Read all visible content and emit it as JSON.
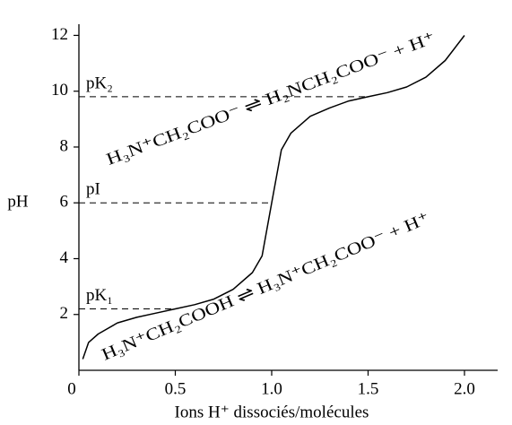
{
  "chart_data": {
    "type": "line",
    "x_label": "Ions H⁺ dissociés/molécules",
    "y_label": "pH",
    "x": [
      0.02,
      0.05,
      0.1,
      0.2,
      0.3,
      0.4,
      0.5,
      0.6,
      0.7,
      0.8,
      0.9,
      0.95,
      1.0,
      1.05,
      1.1,
      1.2,
      1.3,
      1.4,
      1.5,
      1.6,
      1.7,
      1.8,
      1.9,
      2.0
    ],
    "values": [
      0.4,
      1.0,
      1.3,
      1.7,
      1.9,
      2.05,
      2.2,
      2.35,
      2.55,
      2.9,
      3.5,
      4.1,
      6.0,
      7.9,
      8.5,
      9.1,
      9.4,
      9.65,
      9.8,
      9.95,
      10.15,
      10.5,
      11.1,
      12.0
    ],
    "color": "#000000",
    "xlim": [
      0,
      2.2
    ],
    "ylim": [
      0,
      12.4
    ],
    "xticks": [
      0,
      0.5,
      {
        "value": 1,
        "label": "1.0"
      },
      1.5,
      {
        "value": 2,
        "label": "2.0"
      }
    ],
    "yticks": [
      2,
      4,
      6,
      8,
      10,
      12
    ],
    "reference_lines": [
      {
        "label": "pK₂",
        "y": 9.8,
        "x_end": 1.5
      },
      {
        "label": "pI",
        "y": 6.0,
        "x_end": 1.0
      },
      {
        "label": "pK₁",
        "y": 2.2,
        "x_end": 0.5
      }
    ],
    "annotations": [
      "H₃N⁺CH₂COO⁻ ⇌ H₂NCH₂COO⁻ + H⁺",
      "H₃N⁺CH₂COOH ⇌ H₃N⁺CH₂COO⁻ + H⁺"
    ]
  }
}
